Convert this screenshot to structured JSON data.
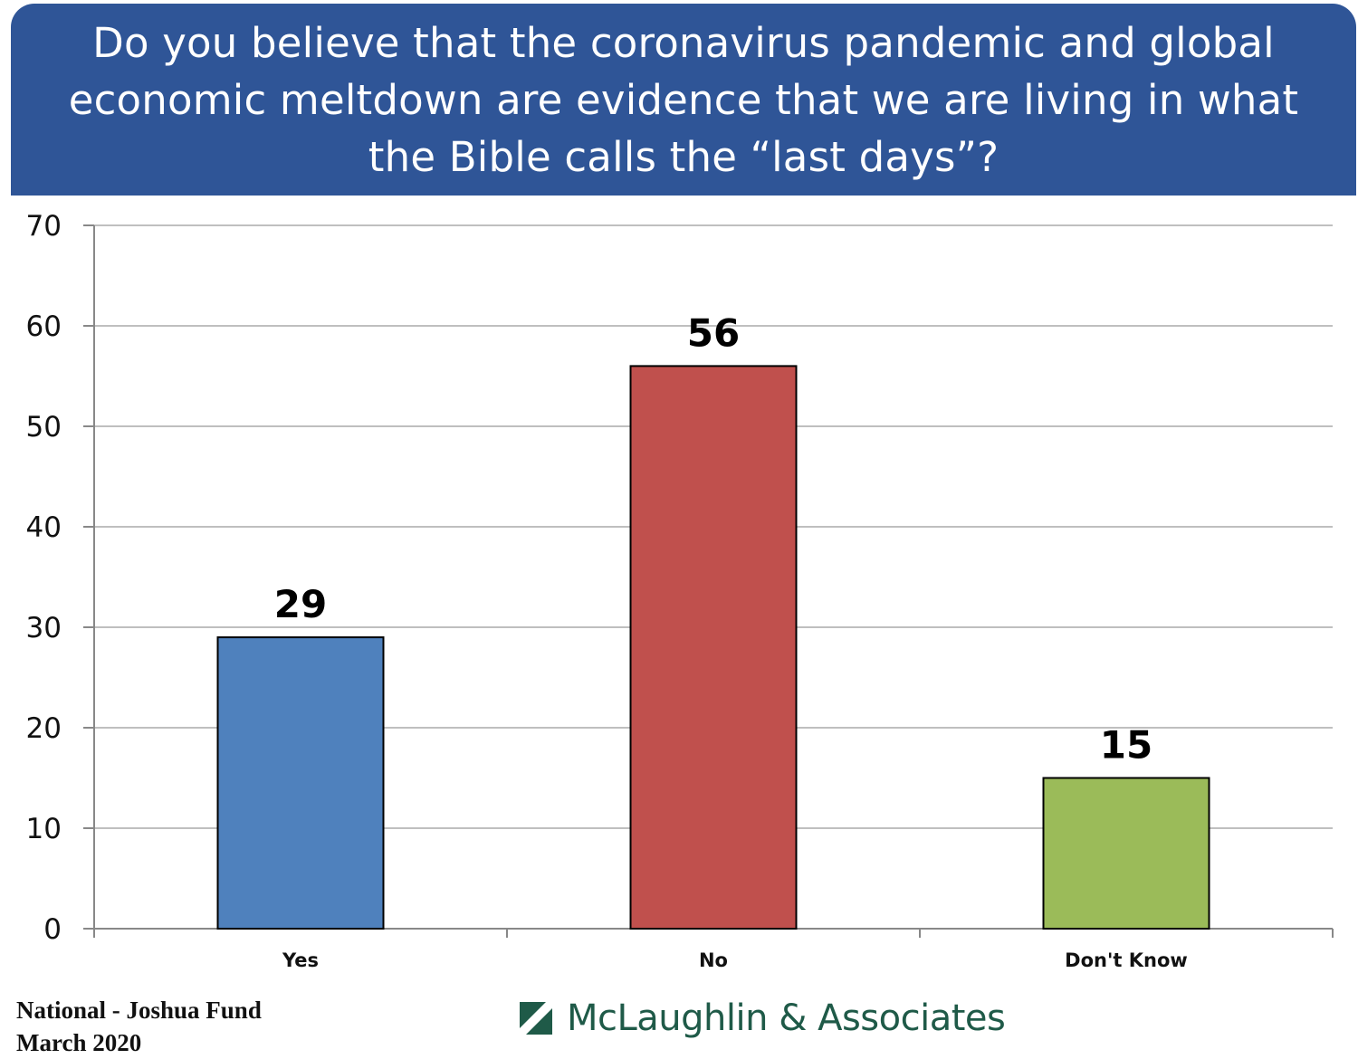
{
  "header": {
    "title": "Do you believe that the coronavirus pandemic and global economic meltdown are evidence that we are living in what the Bible calls the “last days”?"
  },
  "footer": {
    "source_line1": "National - Joshua Fund",
    "source_line2": "March 2020",
    "logo_text": "McLaughlin & Associates",
    "logo_icon": "slash-square-icon",
    "logo_color": "#1f5a48"
  },
  "chart_data": {
    "type": "bar",
    "title": "Do you believe that the coronavirus pandemic and global economic meltdown are evidence that we are living in what the Bible calls the “last days”?",
    "categories": [
      "Yes",
      "No",
      "Don't Know"
    ],
    "values": [
      29,
      56,
      15
    ],
    "data_labels": [
      "29",
      "56",
      "15"
    ],
    "colors": [
      "#4f81bd",
      "#c0504d",
      "#9bbb59"
    ],
    "ylim": [
      0,
      70
    ],
    "yticks": [
      0,
      10,
      20,
      30,
      40,
      50,
      60,
      70
    ],
    "grid": true,
    "legend": "none"
  }
}
